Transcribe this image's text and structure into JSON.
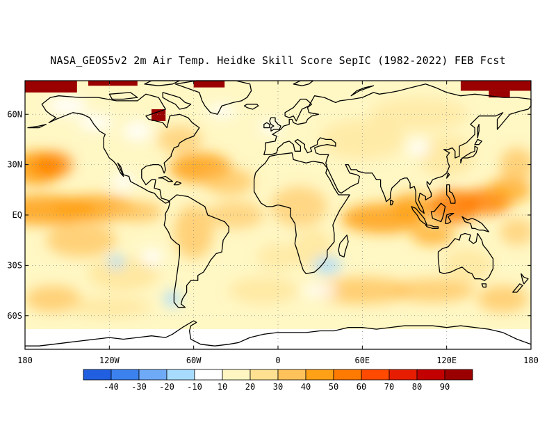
{
  "title": "NASA_GEOS5v2 2m Air Temp. Heidke Skill Score SepIC (1982-2022) FEB Fcst",
  "map": {
    "lon_range": [
      -180,
      180
    ],
    "lat_range": [
      -80,
      80
    ],
    "lat_ticks": [
      {
        "lat": 60,
        "label": "60N"
      },
      {
        "lat": 30,
        "label": "30N"
      },
      {
        "lat": 0,
        "label": "EQ"
      },
      {
        "lat": -30,
        "label": "30S"
      },
      {
        "lat": -60,
        "label": "60S"
      }
    ],
    "lon_ticks": [
      {
        "lon": -180,
        "label": "180"
      },
      {
        "lon": -120,
        "label": "120W"
      },
      {
        "lon": -60,
        "label": "60W"
      },
      {
        "lon": 0,
        "label": "0"
      },
      {
        "lon": 60,
        "label": "60E"
      },
      {
        "lon": 120,
        "label": "120E"
      },
      {
        "lon": 180,
        "label": "180"
      }
    ],
    "background_fill": "#fff7c4",
    "coastline_color": "#000000",
    "grid": "dotted"
  },
  "colorbar": {
    "colors": [
      "#1f5fe0",
      "#3c82ef",
      "#6faaf6",
      "#a8dcff",
      "#ffffff",
      "#fff6c2",
      "#ffe191",
      "#ffc25a",
      "#ffa116",
      "#ff7a00",
      "#ff4a00",
      "#e61d00",
      "#c20000",
      "#9b0000"
    ],
    "labels": [
      "-40",
      "-30",
      "-20",
      "-10",
      "10",
      "20",
      "30",
      "40",
      "50",
      "60",
      "70",
      "80",
      "90"
    ]
  }
}
